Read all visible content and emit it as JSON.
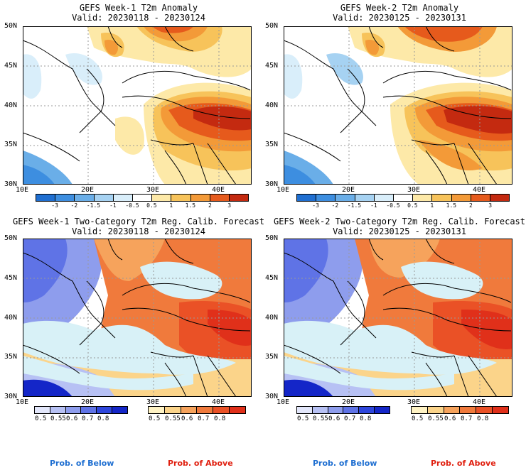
{
  "panels": [
    {
      "title": "GEFS Week-1 T2m Anomaly",
      "valid": "Valid: 20230118 - 20230124",
      "type": "anomaly"
    },
    {
      "title": "GEFS Week-2 T2m Anomaly",
      "valid": "Valid: 20230125 - 20230131",
      "type": "anomaly"
    },
    {
      "title": "GEFS Week-1 Two-Category T2m Reg. Calib. Forecast",
      "valid": "Valid: 20230118 - 20230124",
      "type": "prob"
    },
    {
      "title": "GEFS Week-2 Two-Category T2m Reg. Calib. Forecast",
      "valid": "Valid: 20230125 - 20230131",
      "type": "prob"
    }
  ],
  "axes": {
    "lat_labels": [
      "50N",
      "45N",
      "40N",
      "35N",
      "30N"
    ],
    "lon_labels": [
      "10E",
      "20E",
      "30E",
      "40E"
    ]
  },
  "anomaly_colorbar": {
    "ticks": [
      "-3",
      "-2",
      "-1.5",
      "-1",
      "-0.5",
      "0.5",
      "1",
      "1.5",
      "2",
      "3"
    ],
    "colors": [
      "#1f6fd1",
      "#3d8ee0",
      "#6aaee8",
      "#a6d2f2",
      "#d9eefa",
      "#ffffff",
      "#fde9a8",
      "#f7c35a",
      "#f39a38",
      "#e65a1c",
      "#c42a10"
    ]
  },
  "prob_colorbar_below": {
    "ticks": [
      "0.5",
      "0.55",
      "0.6",
      "0.7",
      "0.8"
    ],
    "colors": [
      "#e3e7fb",
      "#b7c1f4",
      "#8e9ded",
      "#5f73e6",
      "#2e46dc",
      "#1426c8"
    ]
  },
  "prob_colorbar_above": {
    "ticks": [
      "0.5",
      "0.55",
      "0.6",
      "0.7",
      "0.8"
    ],
    "colors": [
      "#fff3c4",
      "#fbd48a",
      "#f6a35c",
      "#f07a3c",
      "#ea5126",
      "#e0301a"
    ]
  },
  "legend": {
    "below": "Prob. of Below",
    "above": "Prob. of Above",
    "below_color": "#1f6fd1",
    "above_color": "#e02010"
  }
}
